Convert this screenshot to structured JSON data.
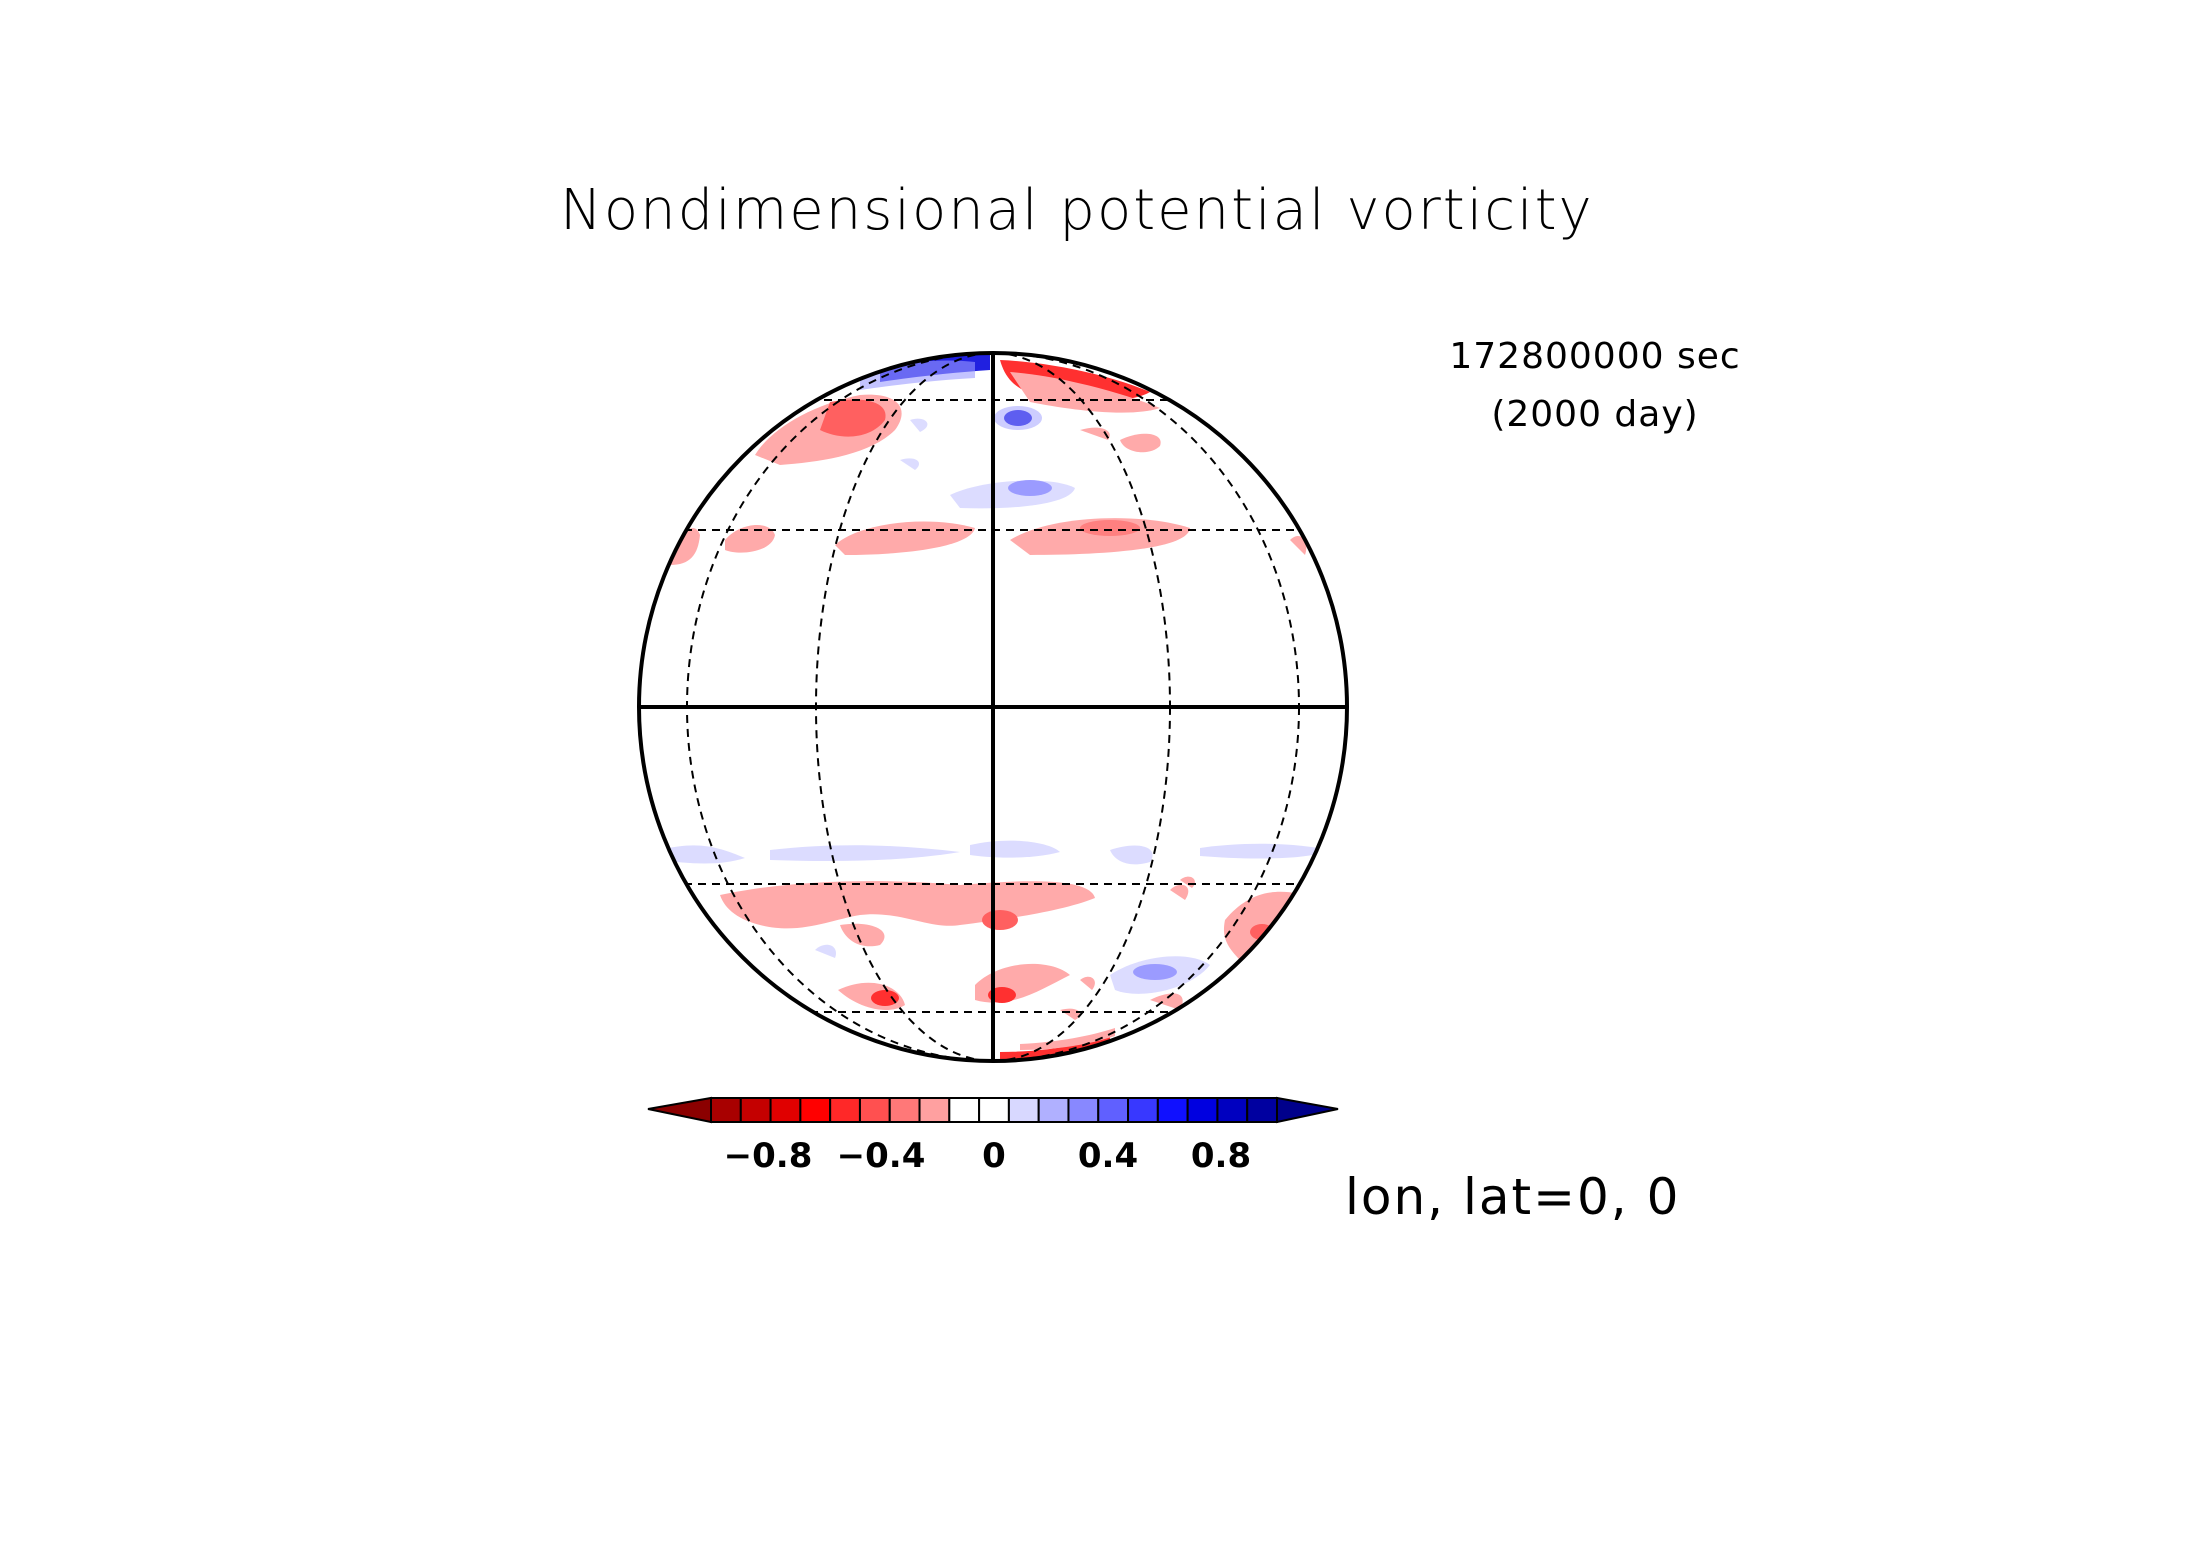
{
  "title": "Nondimensional potential vorticity",
  "time": {
    "seconds": "172800000 sec",
    "days": "(2000 day)"
  },
  "projection_center": "lon, lat=0, 0",
  "colorbar": {
    "tick_labels": [
      "−0.8",
      "−0.4",
      "0",
      "0.4",
      "0.8"
    ],
    "colors": [
      "#8b0000",
      "#a80000",
      "#c40000",
      "#e00000",
      "#ff0000",
      "#ff2828",
      "#ff5050",
      "#ff7878",
      "#ffa0a0",
      "#ffffff",
      "#ffffff",
      "#d8d8ff",
      "#b0b0ff",
      "#8888ff",
      "#6060ff",
      "#3838ff",
      "#1010ff",
      "#0000e0",
      "#0000c0",
      "#0000a0",
      "#00008b"
    ]
  },
  "legend_colors": {
    "light_red": "#ffaaaa",
    "mid_red": "#ff6060",
    "red": "#ff1e1e",
    "light_blue": "#dcdcff",
    "mid_blue": "#9b9bff",
    "blue": "#2020e0"
  }
}
